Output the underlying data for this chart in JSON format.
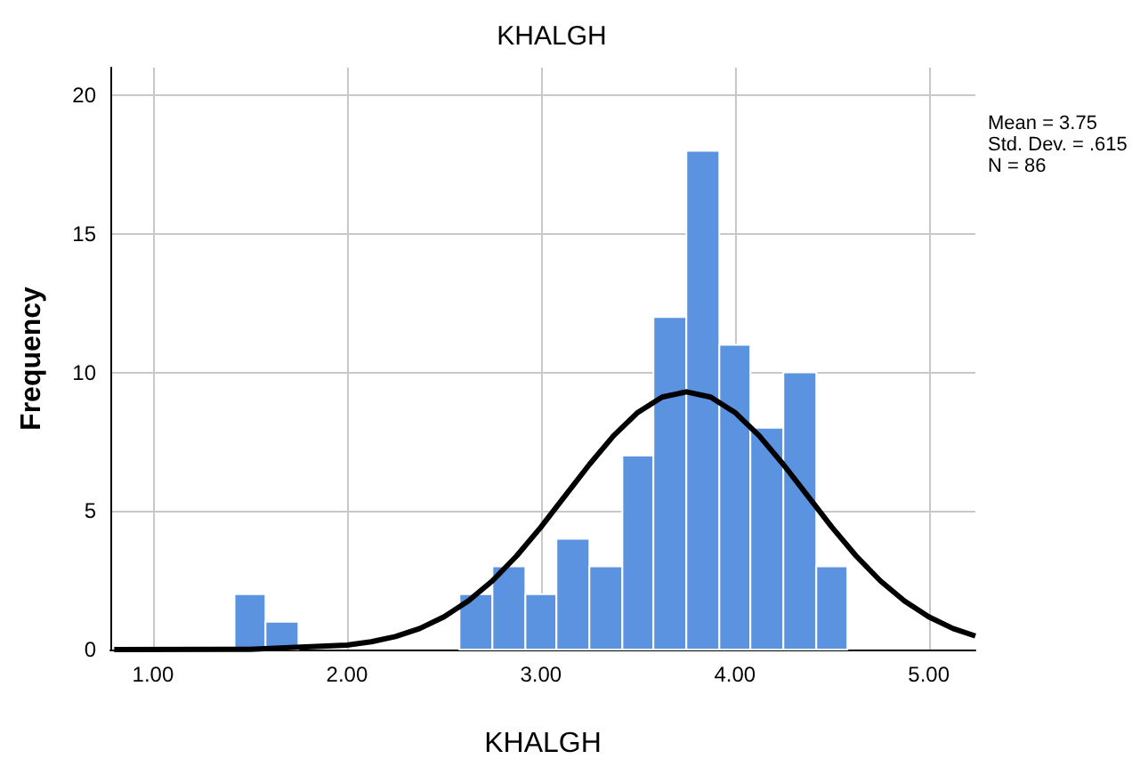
{
  "chart_data": {
    "type": "histogram",
    "title": "KHALGH",
    "xlabel": "KHALGH",
    "ylabel": "Frequency",
    "bins": [
      1.42,
      1.58,
      1.75,
      2.58,
      2.75,
      2.92,
      3.08,
      3.25,
      3.42,
      3.58,
      3.75,
      3.92,
      4.08,
      4.25,
      4.42,
      4.58
    ],
    "values": [
      2,
      1,
      0,
      2,
      3,
      2,
      4,
      3,
      7,
      12,
      18,
      11,
      8,
      10,
      3
    ],
    "color": "#5b93e0",
    "series": [
      {
        "type": "line",
        "color": "#000000",
        "x": [
          0.8,
          1.5,
          2.0,
          2.125,
          2.25,
          2.375,
          2.5,
          2.625,
          2.75,
          2.875,
          3.0,
          3.125,
          3.25,
          3.375,
          3.5,
          3.625,
          3.75,
          3.875,
          4.0,
          4.125,
          4.25,
          4.375,
          4.5,
          4.625,
          4.75,
          4.875,
          5.0,
          5.125,
          5.24
        ],
        "values": [
          0.0,
          0.01,
          0.16,
          0.28,
          0.47,
          0.76,
          1.18,
          1.75,
          2.48,
          3.38,
          4.42,
          5.55,
          6.68,
          7.72,
          8.56,
          9.11,
          9.3,
          9.11,
          8.56,
          7.72,
          6.68,
          5.55,
          4.42,
          3.38,
          2.48,
          1.75,
          1.18,
          0.76,
          0.49
        ]
      }
    ],
    "xlim": [
      0.78,
      5.24
    ],
    "xticks": [
      {
        "value": 1,
        "label": "1.00"
      },
      {
        "value": 2,
        "label": "2.00"
      },
      {
        "value": 3,
        "label": "3.00"
      },
      {
        "value": 4,
        "label": "4.00"
      },
      {
        "value": 5,
        "label": "5.00"
      }
    ],
    "ylim": [
      0,
      21
    ],
    "yticks": [
      0,
      5,
      10,
      15,
      20
    ],
    "grid": true,
    "marker": "none",
    "line_style": "solid",
    "annotations": [
      "Mean = 3.75",
      "Std. Dev. = .615",
      "N = 86"
    ]
  }
}
